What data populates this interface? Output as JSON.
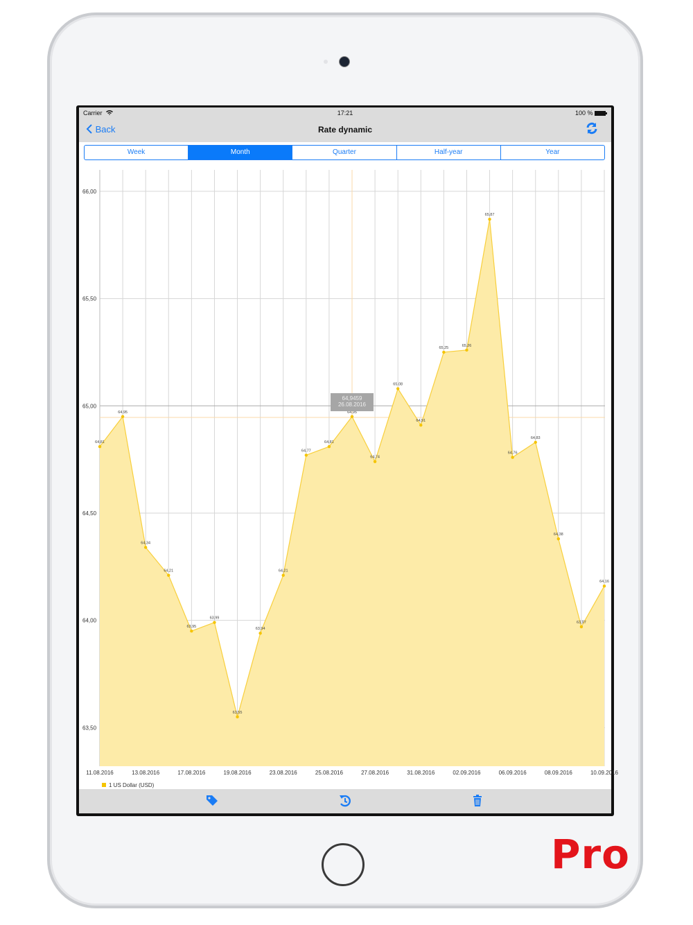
{
  "status_bar": {
    "carrier": "Carrier",
    "time": "17:21",
    "battery": "100 %"
  },
  "nav": {
    "back_label": "Back",
    "title": "Rate dynamic",
    "refresh_icon": "refresh-icon"
  },
  "periods": [
    {
      "label": "Week",
      "active": false
    },
    {
      "label": "Month",
      "active": true
    },
    {
      "label": "Quarter",
      "active": false
    },
    {
      "label": "Half-year",
      "active": false
    },
    {
      "label": "Year",
      "active": false
    }
  ],
  "toolbar": {
    "icons": [
      "tag-icon",
      "history-icon",
      "trash-icon"
    ]
  },
  "branding": {
    "pro_label": "Pro"
  },
  "colors": {
    "accent": "#0a7afa",
    "fill": "#fdeba8",
    "line": "#f8cf3c",
    "point": "#f5c400",
    "pro": "#e3141b"
  },
  "chart_data": {
    "type": "area",
    "series": [
      {
        "name": "1 US Dollar (USD)",
        "values": [
          64.81,
          64.95,
          64.34,
          64.21,
          63.95,
          63.99,
          63.55,
          63.94,
          64.21,
          64.77,
          64.81,
          64.95,
          64.74,
          65.08,
          64.91,
          65.25,
          65.26,
          65.87,
          64.76,
          64.83,
          64.38,
          63.97,
          64.16
        ],
        "labels": [
          "64,81",
          "64,95",
          "64,34",
          "64,21",
          "63,95",
          "63,99",
          "63,55",
          "63,94",
          "64,21",
          "64,77",
          "64,81",
          "64,95",
          "64,74",
          "65,08",
          "64,91",
          "65,25",
          "65,26",
          "65,87",
          "64,76",
          "64,83",
          "64,38",
          "63,97",
          "64,16"
        ]
      }
    ],
    "x_tick_labels": [
      "11.08.2016",
      "13.08.2016",
      "17.08.2016",
      "19.08.2016",
      "23.08.2016",
      "25.08.2016",
      "27.08.2016",
      "31.08.2016",
      "02.09.2016",
      "06.09.2016",
      "08.09.2016",
      "10.09.2016"
    ],
    "y_ticks": [
      63.5,
      64.0,
      64.5,
      65.0,
      65.5,
      66.0
    ],
    "y_tick_labels": [
      "63,50",
      "64,00",
      "64,50",
      "65,00",
      "65,50",
      "66,00"
    ],
    "ylim": [
      63.32,
      66.1
    ],
    "grid": true,
    "legend": "bottom-left",
    "tooltip": {
      "index": 11,
      "value": "64,9459",
      "date": "26.08.2016"
    }
  }
}
